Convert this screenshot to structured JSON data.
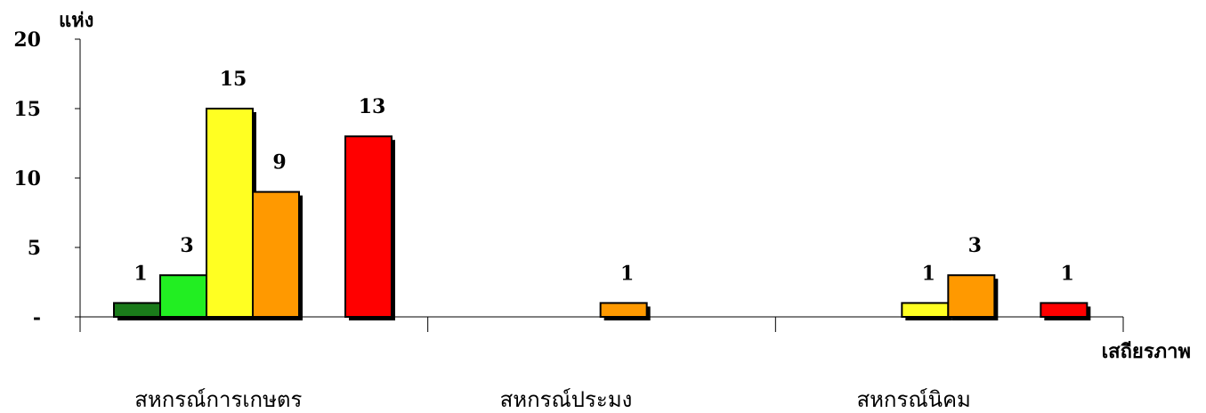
{
  "chart_data": {
    "type": "bar",
    "ylabel": "แห่ง",
    "xlabel": "เสถียรภาพ",
    "ylim": [
      0,
      20
    ],
    "yticks": [
      {
        "value": 0,
        "label": "-"
      },
      {
        "value": 5,
        "label": "5"
      },
      {
        "value": 10,
        "label": "10"
      },
      {
        "value": 15,
        "label": "15"
      },
      {
        "value": 20,
        "label": "20"
      }
    ],
    "grid": false,
    "legend": "none",
    "categories": [
      "สหกรณ์การเกษตร",
      "สหกรณ์ประมง",
      "สหกรณ์นิคม"
    ],
    "series": [
      {
        "color": "#1a7a1a",
        "values": [
          1,
          0,
          0
        ]
      },
      {
        "color": "#22ee22",
        "values": [
          3,
          0,
          0
        ]
      },
      {
        "color": "#ffff22",
        "values": [
          15,
          0,
          1
        ]
      },
      {
        "color": "#ff9900",
        "values": [
          9,
          1,
          3
        ]
      },
      {
        "color": "#ff0000",
        "values": [
          13,
          0,
          1
        ]
      }
    ]
  }
}
